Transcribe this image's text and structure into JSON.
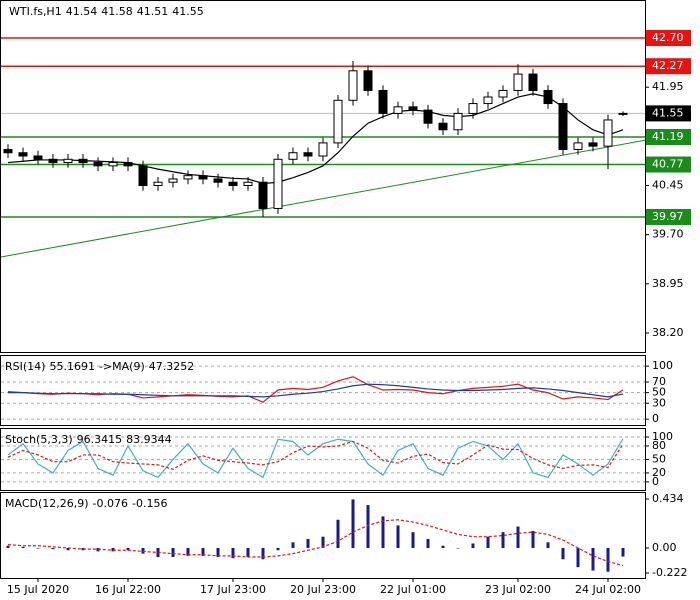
{
  "chart_data": [
    {
      "type": "candlestick",
      "series": [
        {
          "name": "WTI.fs,H1",
          "up_color": "#ffffff",
          "down_color": "#000000",
          "edge_color": "#000000",
          "open": [
            41.0,
            40.95,
            40.9,
            40.85,
            40.8,
            40.85,
            40.8,
            40.75,
            40.8,
            40.75,
            40.45,
            40.5,
            40.55,
            40.6,
            40.55,
            40.5,
            40.45,
            40.5,
            40.1,
            40.85,
            40.95,
            40.9,
            41.1,
            41.75,
            42.2,
            41.9,
            41.55,
            41.65,
            41.6,
            41.4,
            41.3,
            41.55,
            41.7,
            41.8,
            41.9,
            42.15,
            41.9,
            41.7,
            41.0,
            41.1,
            41.05,
            41.54
          ],
          "high": [
            41.08,
            41.03,
            40.98,
            40.93,
            40.93,
            40.93,
            40.88,
            40.88,
            40.88,
            40.83,
            40.58,
            40.63,
            40.68,
            40.68,
            40.63,
            40.58,
            40.58,
            40.58,
            40.93,
            41.03,
            41.03,
            41.18,
            41.83,
            42.35,
            42.28,
            41.98,
            41.73,
            41.73,
            41.68,
            41.48,
            41.63,
            41.78,
            41.88,
            41.98,
            42.3,
            42.23,
            41.98,
            41.78,
            41.18,
            41.18,
            41.53,
            41.58
          ],
          "low": [
            40.87,
            40.82,
            40.77,
            40.72,
            40.72,
            40.72,
            40.67,
            40.67,
            40.67,
            40.37,
            40.37,
            40.42,
            40.47,
            40.47,
            40.42,
            40.37,
            40.37,
            39.97,
            40.02,
            40.77,
            40.82,
            40.82,
            41.02,
            41.67,
            41.82,
            41.47,
            41.47,
            41.52,
            41.32,
            41.22,
            41.22,
            41.47,
            41.62,
            41.72,
            41.82,
            41.82,
            41.62,
            40.92,
            40.92,
            40.97,
            40.7,
            41.51
          ],
          "close": [
            40.95,
            40.9,
            40.85,
            40.8,
            40.85,
            40.8,
            40.75,
            40.8,
            40.75,
            40.45,
            40.5,
            40.55,
            40.6,
            40.55,
            40.5,
            40.45,
            40.5,
            40.1,
            40.85,
            40.95,
            40.9,
            41.1,
            41.75,
            42.2,
            41.9,
            41.55,
            41.65,
            41.6,
            41.4,
            41.3,
            41.55,
            41.7,
            41.8,
            41.9,
            42.15,
            41.9,
            41.7,
            41.0,
            41.1,
            41.05,
            41.45,
            41.55
          ]
        }
      ],
      "ma": {
        "color": "#000000",
        "values": [
          40.8,
          40.82,
          40.84,
          40.84,
          40.84,
          40.83,
          40.82,
          40.81,
          40.8,
          40.75,
          40.7,
          40.66,
          40.62,
          40.6,
          40.58,
          40.56,
          40.55,
          40.48,
          40.5,
          40.57,
          40.65,
          40.75,
          40.95,
          41.2,
          41.4,
          41.5,
          41.58,
          41.6,
          41.58,
          41.52,
          41.5,
          41.52,
          41.6,
          41.7,
          41.8,
          41.85,
          41.8,
          41.65,
          41.45,
          41.3,
          41.22,
          41.3
        ]
      },
      "trendline": {
        "color": "#1a8c1a",
        "values": [
          39.36,
          41.14
        ]
      },
      "levels": [
        {
          "value": 42.7,
          "label": "42.70",
          "color": "#e8130f"
        },
        {
          "value": 42.27,
          "label": "42.27",
          "color": "#e8130f"
        },
        {
          "value": 41.19,
          "label": "41.19",
          "color": "#1a8c1a"
        },
        {
          "value": 40.77,
          "label": "40.77",
          "color": "#1a8c1a"
        },
        {
          "value": 39.97,
          "label": "39.97",
          "color": "#1a8c1a"
        }
      ],
      "ylim": [
        37.91,
        43.28
      ],
      "yticks": [
        41.95,
        40.45,
        {
          "value": 39.7,
          "label": "39.70"
        },
        38.95,
        {
          "value": 38.2,
          "label": "38.20"
        }
      ],
      "grid": false
    },
    {
      "type": "line",
      "title": "RSI(14)",
      "series": [
        {
          "color": "#e8130f",
          "values": [
            52,
            50,
            48,
            47,
            49,
            48,
            46,
            48,
            47,
            40,
            42,
            44,
            46,
            45,
            43,
            42,
            44,
            32,
            55,
            58,
            56,
            60,
            72,
            80,
            65,
            55,
            56,
            55,
            50,
            48,
            54,
            58,
            60,
            62,
            66,
            55,
            50,
            38,
            42,
            40,
            37,
            55.1691
          ]
        },
        {
          "name": "->MA(9)",
          "color": "#1f3aa0",
          "values": [
            50,
            50,
            49,
            48,
            48,
            48,
            48,
            47,
            47,
            46,
            45,
            44,
            44,
            44,
            44,
            44,
            43,
            42,
            44,
            47,
            49,
            52,
            57,
            63,
            66,
            65,
            63,
            60,
            57,
            55,
            54,
            54,
            55,
            56,
            58,
            59,
            57,
            54,
            50,
            46,
            42,
            47.3252
          ]
        }
      ],
      "ylim": [
        -11,
        121
      ],
      "yticks": [
        100,
        70,
        50,
        30,
        0
      ],
      "grid": true
    },
    {
      "type": "line",
      "title": "Stoch(5,3,3)",
      "series": [
        {
          "color": "#3bb3c3",
          "values": [
            60,
            85,
            40,
            20,
            70,
            90,
            30,
            15,
            80,
            25,
            10,
            50,
            85,
            40,
            20,
            75,
            30,
            10,
            95,
            90,
            60,
            85,
            95,
            90,
            40,
            15,
            70,
            85,
            30,
            15,
            75,
            90,
            80,
            50,
            85,
            20,
            10,
            60,
            40,
            15,
            40,
            96.3415
          ]
        },
        {
          "color": "#e8130f",
          "dashed": true,
          "values": [
            55,
            70,
            60,
            45,
            45,
            60,
            60,
            45,
            42,
            40,
            38,
            28,
            48,
            58,
            48,
            45,
            42,
            38,
            45,
            65,
            80,
            78,
            80,
            90,
            75,
            48,
            42,
            57,
            62,
            43,
            40,
            60,
            82,
            73,
            72,
            52,
            38,
            30,
            37,
            38,
            32,
            83.9344
          ]
        }
      ],
      "ylim": [
        -18,
        120
      ],
      "yticks": [
        100,
        80,
        50,
        20,
        0
      ],
      "grid": true
    },
    {
      "type": "macd",
      "title": "MACD(12,26,9)",
      "series": [
        {
          "kind": "bar",
          "color": "#1a1a8c",
          "values": [
            0.02,
            0.01,
            0.0,
            -0.01,
            -0.02,
            -0.02,
            -0.03,
            -0.03,
            -0.02,
            -0.05,
            -0.08,
            -0.08,
            -0.07,
            -0.07,
            -0.08,
            -0.09,
            -0.08,
            -0.1,
            -0.02,
            0.05,
            0.08,
            0.1,
            0.25,
            0.43,
            0.38,
            0.28,
            0.2,
            0.14,
            0.08,
            0.02,
            0.0,
            0.04,
            0.1,
            0.14,
            0.19,
            0.15,
            0.05,
            -0.1,
            -0.17,
            -0.2,
            -0.21,
            -0.076
          ]
        },
        {
          "kind": "line",
          "color": "#e8130f",
          "dashed": true,
          "values": [
            0.03,
            0.02,
            0.02,
            0.01,
            0.0,
            -0.01,
            -0.01,
            -0.02,
            -0.02,
            -0.03,
            -0.04,
            -0.05,
            -0.06,
            -0.06,
            -0.07,
            -0.07,
            -0.08,
            -0.08,
            -0.07,
            -0.05,
            -0.02,
            0.01,
            0.06,
            0.14,
            0.2,
            0.24,
            0.25,
            0.23,
            0.2,
            0.16,
            0.12,
            0.1,
            0.1,
            0.11,
            0.13,
            0.14,
            0.12,
            0.07,
            0.0,
            -0.07,
            -0.12,
            -0.156
          ]
        }
      ],
      "ylim": [
        -0.266,
        0.496
      ],
      "yticks": [
        0.434,
        {
          "value": 0,
          "label": "0.00"
        },
        -0.222
      ],
      "grid": false,
      "categories": [
        null,
        null,
        "15 Jul 2020",
        null,
        null,
        null,
        null,
        null,
        "16 Jul 22:00",
        null,
        null,
        null,
        null,
        null,
        null,
        "17 Jul 23:00",
        null,
        null,
        null,
        null,
        null,
        "20 Jul 23:00",
        null,
        null,
        null,
        null,
        null,
        "22 Jul 01:00",
        null,
        null,
        null,
        null,
        null,
        null,
        "23 Jul 02:00",
        null,
        null,
        null,
        null,
        null,
        "24 Jul 02:00",
        null
      ]
    }
  ]
}
